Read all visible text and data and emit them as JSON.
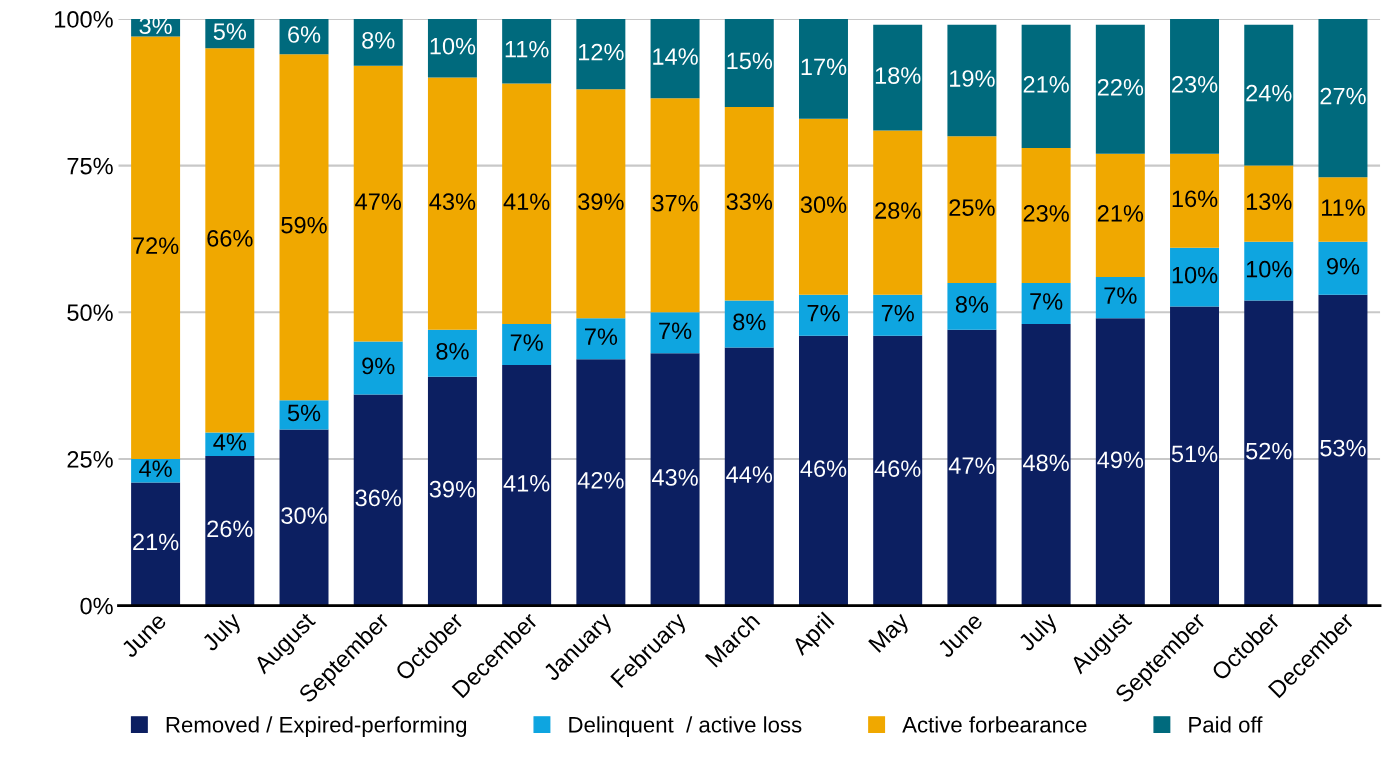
{
  "chart_data": {
    "type": "bar",
    "stacked": true,
    "categories": [
      "June",
      "July",
      "August",
      "September",
      "October",
      "December",
      "January",
      "February",
      "March",
      "April",
      "May",
      "June",
      "July",
      "August",
      "September",
      "October",
      "December"
    ],
    "series": [
      {
        "name": "Removed / Expired-performing",
        "color": "#0c1f61",
        "values": [
          21,
          25.5,
          30,
          36,
          39,
          41,
          42,
          43,
          44,
          46,
          46,
          47,
          48,
          49,
          51,
          52,
          53
        ],
        "value_labels": [
          "21%",
          "26%",
          "30%",
          "36%",
          "39%",
          "41%",
          "42%",
          "43%",
          "44%",
          "46%",
          "46%",
          "47%",
          "48%",
          "49%",
          "51%",
          "52%",
          "53%"
        ]
      },
      {
        "name": "Delinquent  / active loss",
        "color": "#0ea5e0",
        "values": [
          4,
          4,
          5,
          9,
          8,
          7,
          7,
          7,
          8,
          7,
          7,
          8,
          7,
          7,
          10,
          10,
          9
        ],
        "value_labels": [
          "4%",
          "4%",
          "5%",
          "9%",
          "8%",
          "7%",
          "7%",
          "7%",
          "8%",
          "7%",
          "7%",
          "8%",
          "7%",
          "7%",
          "10%",
          "10%",
          "9%"
        ]
      },
      {
        "name": "Active forbearance",
        "color": "#f0a800",
        "values": [
          72,
          65.5,
          59,
          47,
          43,
          41,
          39,
          36.5,
          33,
          30,
          28,
          25,
          23,
          21,
          16,
          13,
          11
        ],
        "value_labels": [
          "72%",
          "66%",
          "59%",
          "47%",
          "43%",
          "41%",
          "39%",
          "37%",
          "33%",
          "30%",
          "28%",
          "25%",
          "23%",
          "21%",
          "16%",
          "13%",
          "11%"
        ]
      },
      {
        "name": "Paid off",
        "color": "#006a7d",
        "values": [
          3,
          5,
          6,
          8,
          10,
          11,
          12,
          13.5,
          15,
          17,
          18,
          19,
          21,
          22,
          23,
          24,
          27
        ],
        "value_labels": [
          "3%",
          "5%",
          "6%",
          "8%",
          "10%",
          "11%",
          "12%",
          "14%",
          "15%",
          "17%",
          "18%",
          "19%",
          "21%",
          "22%",
          "23%",
          "24%",
          "27%"
        ]
      }
    ],
    "ylim": [
      0,
      100
    ],
    "yticks": [
      {
        "value": 0,
        "label": "0%"
      },
      {
        "value": 25,
        "label": "25%"
      },
      {
        "value": 50,
        "label": "50%"
      },
      {
        "value": 75,
        "label": "75%"
      },
      {
        "value": 100,
        "label": "100%"
      }
    ],
    "grid": "y",
    "legend": "bottom"
  }
}
